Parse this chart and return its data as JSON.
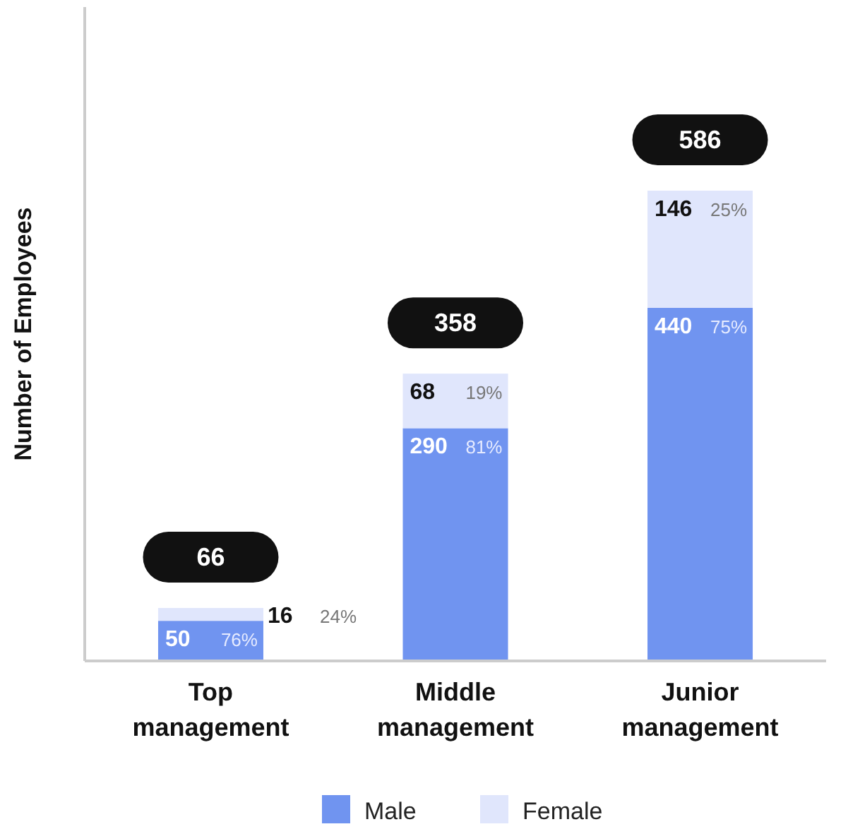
{
  "chart_data": {
    "type": "bar",
    "stacked": true,
    "ylabel": "Number of Employees",
    "categories": [
      "Top management",
      "Middle management",
      "Junior management"
    ],
    "series": [
      {
        "name": "Male",
        "color": "#7094f0",
        "values": [
          50,
          290,
          440
        ]
      },
      {
        "name": "Female",
        "color": "#e0e6fc",
        "values": [
          16,
          68,
          146
        ]
      }
    ],
    "data_labels": true,
    "totals": [
      "66",
      "358",
      "586"
    ],
    "annotations": [
      "76%",
      "81%",
      "75%",
      "24%",
      "19%",
      "25%"
    ],
    "legend": "bottom"
  }
}
